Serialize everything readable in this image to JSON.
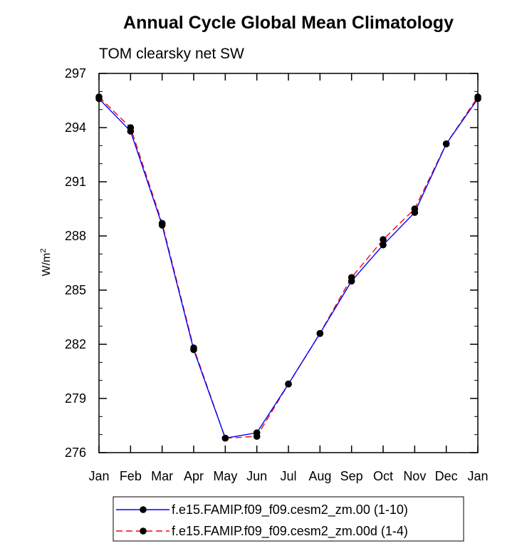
{
  "chart_data": {
    "type": "line",
    "title": "Annual Cycle Global Mean Climatology",
    "subtitle": "TOM clearsky net SW",
    "ylabel": "W/m",
    "ylabel_sup": "2",
    "xlabel": "",
    "categories": [
      "Jan",
      "Feb",
      "Mar",
      "Apr",
      "May",
      "Jun",
      "Jul",
      "Aug",
      "Sep",
      "Oct",
      "Nov",
      "Dec",
      "Jan"
    ],
    "ylim": [
      276,
      297
    ],
    "yticks": [
      "276",
      "279",
      "282",
      "285",
      "288",
      "291",
      "294",
      "297"
    ],
    "grid": false,
    "legend_position": "bottom",
    "series": [
      {
        "name": "f.e15.FAMIP.f09_f09.cesm2_zm.00 (1-10)",
        "color": "#0000ff",
        "line_style": "solid",
        "values": [
          295.6,
          293.8,
          288.6,
          281.7,
          276.8,
          277.1,
          279.8,
          282.6,
          285.5,
          287.5,
          289.3,
          293.1,
          295.6
        ]
      },
      {
        "name": "f.e15.FAMIP.f09_f09.cesm2_zm.00d (1-4)",
        "color": "#ff0000",
        "line_style": "dashed",
        "values": [
          295.7,
          294.0,
          288.7,
          281.8,
          276.8,
          276.9,
          279.8,
          282.6,
          285.7,
          287.8,
          289.5,
          293.1,
          295.7
        ]
      }
    ]
  }
}
